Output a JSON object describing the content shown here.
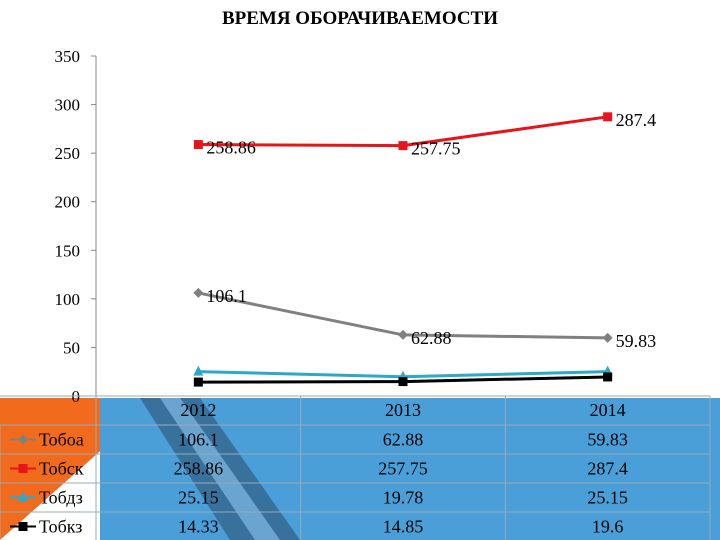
{
  "title": "ВРЕМЯ ОБОРАЧИВАЕМОСТИ",
  "colors": {
    "accent_orange": "#F26B1D",
    "accent_blue": "#3F9AD3",
    "accent_dark": "#1F3A57"
  },
  "chart_data": {
    "type": "line",
    "title": "ВРЕМЯ ОБОРАЧИВАЕМОСТИ",
    "categories": [
      "2012",
      "2013",
      "2014"
    ],
    "ylim": [
      0,
      350
    ],
    "yticks": [
      0,
      50,
      100,
      150,
      200,
      250,
      300,
      350
    ],
    "grid": false,
    "legend_placement": "table-left",
    "series": [
      {
        "name": "Тобоа",
        "values": [
          106.1,
          62.88,
          59.83
        ],
        "color": "#808080",
        "marker": "diamond",
        "labels": [
          "106.1",
          "62.88",
          "59.83"
        ],
        "table": [
          "106.1",
          "62.88",
          "59.83"
        ]
      },
      {
        "name": "Тобск",
        "values": [
          258.86,
          257.75,
          287.4
        ],
        "color": "#E8141B",
        "marker": "square",
        "labels": [
          "258.86",
          "257.75",
          "287.4"
        ],
        "table": [
          "258.86",
          "257.75",
          "287.4"
        ]
      },
      {
        "name": "Тобдз",
        "values": [
          25.15,
          19.78,
          25.15
        ],
        "color": "#2BA9C9",
        "marker": "triangle",
        "labels": [],
        "table": [
          "25.15",
          "19.78",
          "25.15"
        ]
      },
      {
        "name": "Тобкз",
        "values": [
          14.33,
          14.85,
          19.6
        ],
        "color": "#000000",
        "marker": "square",
        "labels": [],
        "table": [
          "14.33",
          "14.85",
          "19.6"
        ]
      }
    ]
  }
}
